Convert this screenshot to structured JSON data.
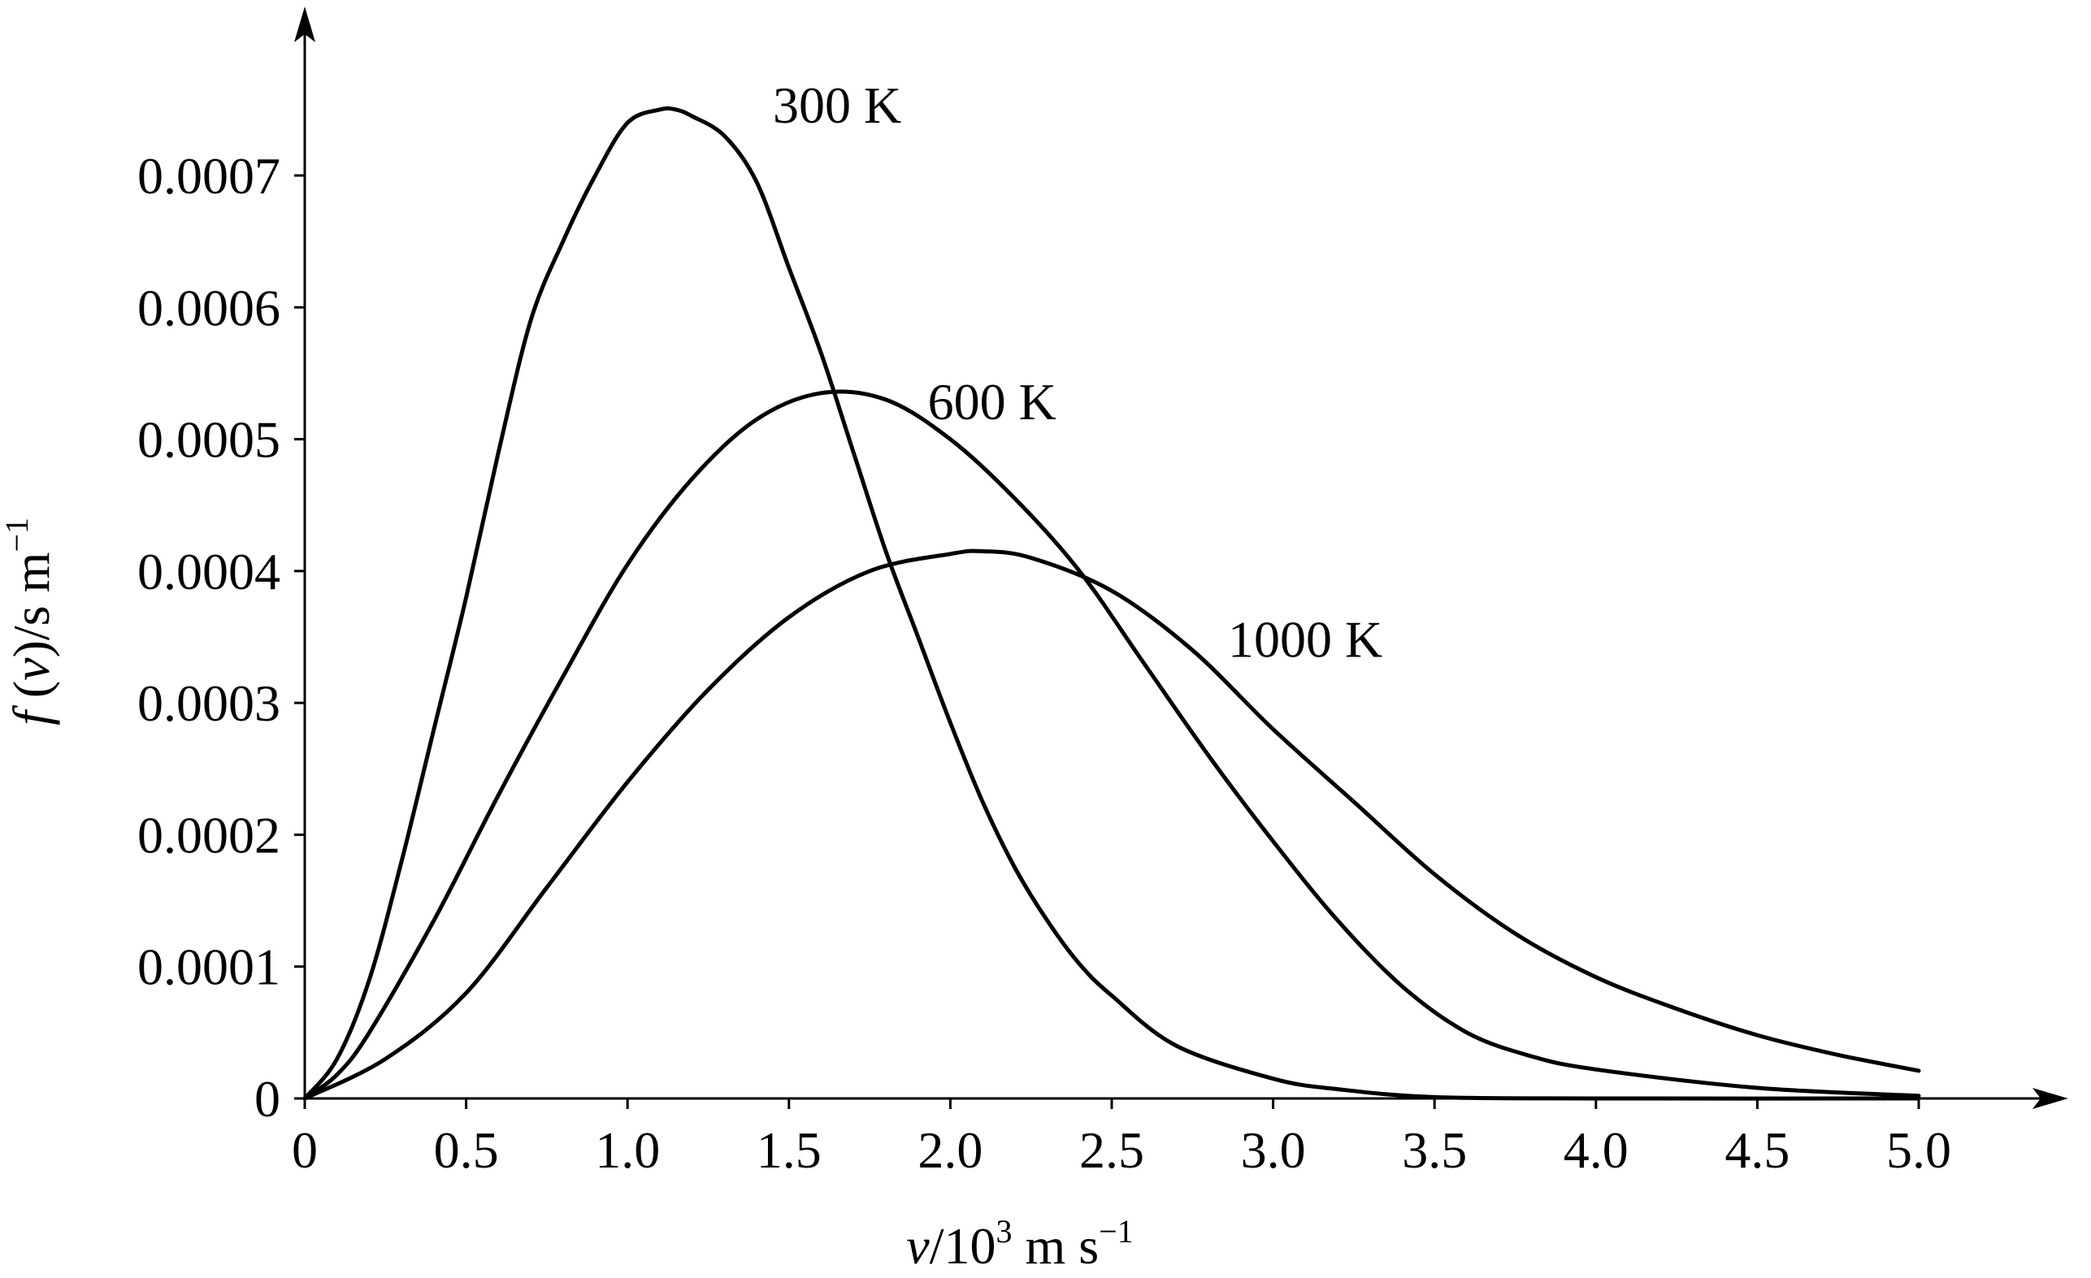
{
  "chart_data": {
    "type": "line",
    "xlabel": {
      "var": "v",
      "rest": "/10",
      "sup1": "3",
      "unit": " m s",
      "sup2": "−1"
    },
    "ylabel": {
      "var_f": "f",
      "paren_open": " (",
      "var_v": "v",
      "rest": ")/s m",
      "sup": "−1"
    },
    "xlim": [
      0,
      5.5
    ],
    "ylim": [
      0,
      0.00082
    ],
    "x_ticks": [
      "0",
      "0.5",
      "1.0",
      "1.5",
      "2.0",
      "2.5",
      "3.0",
      "3.5",
      "4.0",
      "4.5",
      "5.0"
    ],
    "x_tick_values": [
      0,
      0.5,
      1.0,
      1.5,
      2.0,
      2.5,
      3.0,
      3.5,
      4.0,
      4.5,
      5.0
    ],
    "y_ticks": [
      "0",
      "0.0001",
      "0.0002",
      "0.0003",
      "0.0004",
      "0.0005",
      "0.0006",
      "0.0007"
    ],
    "y_tick_values": [
      0,
      0.0001,
      0.0002,
      0.0003,
      0.0004,
      0.0005,
      0.0006,
      0.0007
    ],
    "grid": false,
    "series": [
      {
        "name": "300 K",
        "x": [
          0,
          0.1,
          0.2,
          0.3,
          0.4,
          0.5,
          0.6,
          0.7,
          0.8,
          0.9,
          1.0,
          1.1,
          1.15,
          1.2,
          1.3,
          1.4,
          1.5,
          1.6,
          1.7,
          1.8,
          1.9,
          2.0,
          2.1,
          2.2,
          2.3,
          2.4,
          2.5,
          2.7,
          3.0,
          3.2,
          3.5,
          4.0,
          5.0
        ],
        "values": [
          0,
          3e-05,
          9e-05,
          0.00018,
          0.00028,
          0.00038,
          0.00049,
          0.00059,
          0.00065,
          0.0007,
          0.00074,
          0.00075,
          0.00075,
          0.000745,
          0.00073,
          0.000695,
          0.00063,
          0.000565,
          0.00049,
          0.000415,
          0.00035,
          0.000285,
          0.000225,
          0.000175,
          0.000135,
          0.000102,
          7.8e-05,
          4e-05,
          1.5e-05,
          7e-06,
          1e-06,
          0.0,
          0.0
        ],
        "label_pos": [
          1.45,
          0.00074
        ]
      },
      {
        "name": "600 K",
        "x": [
          0,
          0.1,
          0.2,
          0.4,
          0.6,
          0.8,
          1.0,
          1.2,
          1.4,
          1.6,
          1.8,
          2.0,
          2.2,
          2.4,
          2.6,
          2.8,
          3.0,
          3.2,
          3.4,
          3.6,
          3.8,
          4.0,
          4.5,
          5.0
        ],
        "values": [
          0,
          1.8e-05,
          5e-05,
          0.000135,
          0.00023,
          0.00032,
          0.000405,
          0.00047,
          0.000515,
          0.000535,
          0.00053,
          0.0005,
          0.000455,
          0.0004,
          0.00033,
          0.00026,
          0.000195,
          0.000135,
          8.5e-05,
          5e-05,
          3.2e-05,
          2.2e-05,
          8e-06,
          2e-06
        ],
        "label_pos": [
          1.93,
          0.000515
        ]
      },
      {
        "name": "1000 K",
        "x": [
          0,
          0.25,
          0.5,
          0.75,
          1.0,
          1.25,
          1.5,
          1.75,
          2.0,
          2.1,
          2.25,
          2.5,
          2.75,
          3.0,
          3.25,
          3.5,
          3.75,
          4.0,
          4.25,
          4.5,
          4.75,
          5.0
        ],
        "values": [
          0,
          3e-05,
          8e-05,
          0.00016,
          0.00024,
          0.00031,
          0.000365,
          0.0004,
          0.000413,
          0.000415,
          0.00041,
          0.000385,
          0.00034,
          0.00028,
          0.000225,
          0.00017,
          0.000125,
          9.2e-05,
          6.8e-05,
          4.8e-05,
          3.3e-05,
          2.1e-05
        ],
        "label_pos": [
          2.86,
          0.000335
        ]
      }
    ]
  }
}
